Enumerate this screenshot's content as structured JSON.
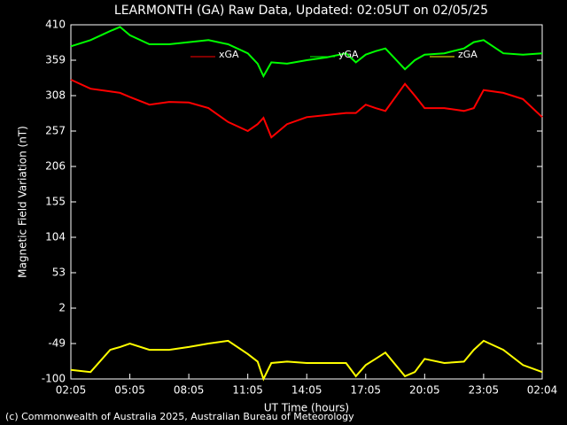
{
  "chart_data": {
    "type": "line",
    "title": "LEARMONTH (GA) Raw Data, Updated: 02:05UT on 02/05/25",
    "x_label": "UT Time (hours)",
    "y_label": "Magnetic Field Variation (nT)",
    "footer": "(c) Commonwealth of Australia 2025, Australian Bureau of Meteorology",
    "x": [
      0,
      1,
      2,
      2.5,
      3,
      4,
      5,
      6,
      7,
      8,
      9,
      9.5,
      9.8,
      10.2,
      11,
      12,
      13,
      14,
      14.5,
      15,
      15.5,
      16,
      17,
      17.5,
      18,
      19,
      20,
      20.5,
      21,
      22,
      23,
      23.98
    ],
    "series": [
      {
        "name": "xGA",
        "color": "#ff0000",
        "values": [
          331,
          318,
          314,
          312,
          306,
          295,
          299,
          298,
          290,
          270,
          257,
          267,
          276,
          248,
          267,
          277,
          280,
          283,
          283,
          295,
          290,
          286,
          325,
          308,
          290,
          290,
          286,
          290,
          316,
          312,
          303,
          277
        ]
      },
      {
        "name": "yGA",
        "color": "#00ff00",
        "values": [
          379,
          388,
          401,
          407,
          395,
          382,
          382,
          385,
          388,
          382,
          369,
          354,
          336,
          356,
          354,
          359,
          363,
          369,
          356,
          367,
          372,
          376,
          346,
          359,
          367,
          369,
          376,
          385,
          388,
          369,
          367,
          369
        ]
      },
      {
        "name": "zGA",
        "color": "#ffff00",
        "values": [
          -87,
          -90,
          -58,
          -54,
          -49,
          -58,
          -58,
          -54,
          -49,
          -45,
          -64,
          -75,
          -100,
          -77,
          -75,
          -77,
          -77,
          -77,
          -96,
          -80,
          -71,
          -62,
          -96,
          -90,
          -71,
          -77,
          -75,
          -58,
          -45,
          -58,
          -80,
          -90
        ]
      }
    ],
    "xlim": [
      0,
      23.98
    ],
    "xticks": [
      {
        "value": 0,
        "label": "02:05"
      },
      {
        "value": 3,
        "label": "05:05"
      },
      {
        "value": 6,
        "label": "08:05"
      },
      {
        "value": 9,
        "label": "11:05"
      },
      {
        "value": 12,
        "label": "14:05"
      },
      {
        "value": 15,
        "label": "17:05"
      },
      {
        "value": 18,
        "label": "20:05"
      },
      {
        "value": 21,
        "label": "23:05"
      },
      {
        "value": 23.98,
        "label": "02:04"
      }
    ],
    "ylim": [
      -100,
      410
    ],
    "yticks": [
      -100,
      -49,
      2,
      53,
      104,
      155,
      206,
      257,
      308,
      359,
      410
    ]
  }
}
